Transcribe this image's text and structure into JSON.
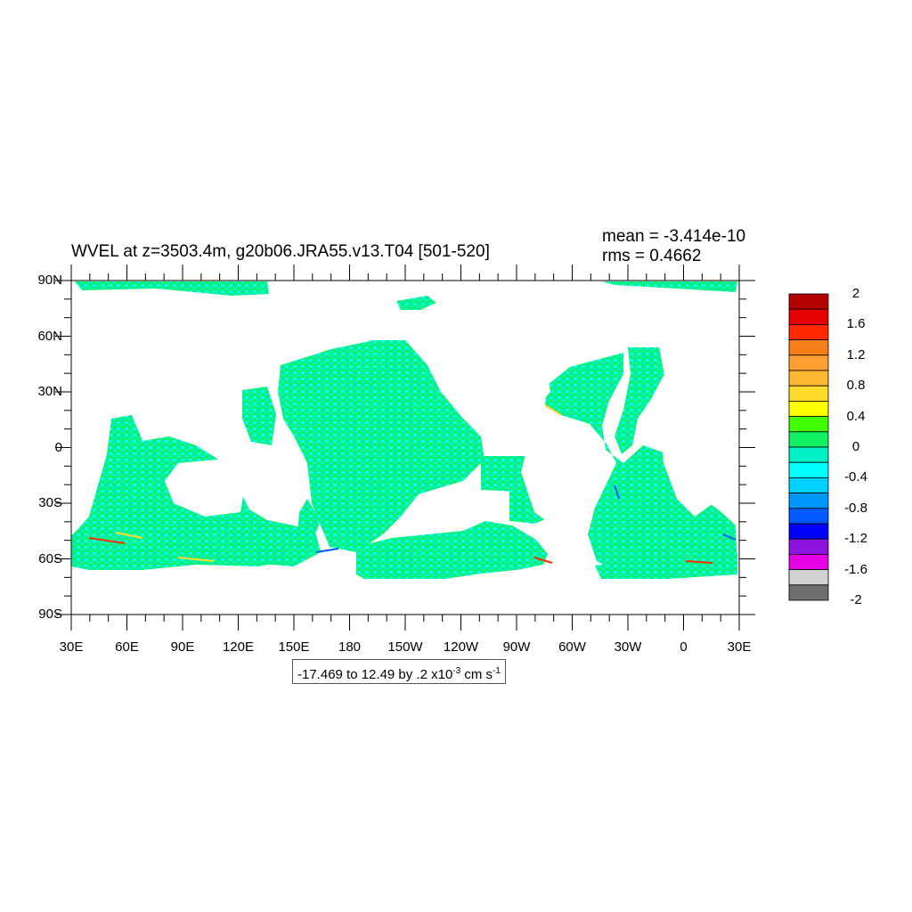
{
  "title": "WVEL at z=3503.4m, g20b06.JRA55.v13.T04 [501-520]",
  "stats": {
    "mean": "mean = -3.414e-10",
    "rms": "rms = 0.4662"
  },
  "axes": {
    "y_ticks": [
      "90N",
      "60N",
      "30N",
      "0",
      "30S",
      "60S",
      "90S"
    ],
    "x_ticks": [
      "30E",
      "60E",
      "90E",
      "120E",
      "150E",
      "180",
      "150W",
      "120W",
      "90W",
      "60W",
      "30W",
      "0",
      "30E"
    ]
  },
  "colorbar": {
    "labels": [
      "2",
      "1.6",
      "1.2",
      "0.8",
      "0.4",
      "0",
      "-0.4",
      "-0.8",
      "-1.2",
      "-1.6",
      "-2"
    ],
    "colors": [
      "#b40000",
      "#e60000",
      "#ff2a00",
      "#f5801a",
      "#ff9f33",
      "#ffb732",
      "#ffd92b",
      "#ffff00",
      "#40ff00",
      "#14f064",
      "#00f0c8",
      "#00ffff",
      "#00d2ff",
      "#0096ff",
      "#005aff",
      "#0000ff",
      "#8c14dc",
      "#e600e6",
      "#d2d2d2",
      "#6e6e6e"
    ]
  },
  "range_note": {
    "prefix": "-17.469 to 12.49 by .2 x10",
    "exp1": "-3",
    "middle": " cm s",
    "exp2": "-1"
  },
  "field_colors": {
    "ocean_main": "#14f064",
    "ocean_alt": "#00f0c8",
    "ocean_cyan": "#00ffff",
    "land": "#ffffff"
  }
}
